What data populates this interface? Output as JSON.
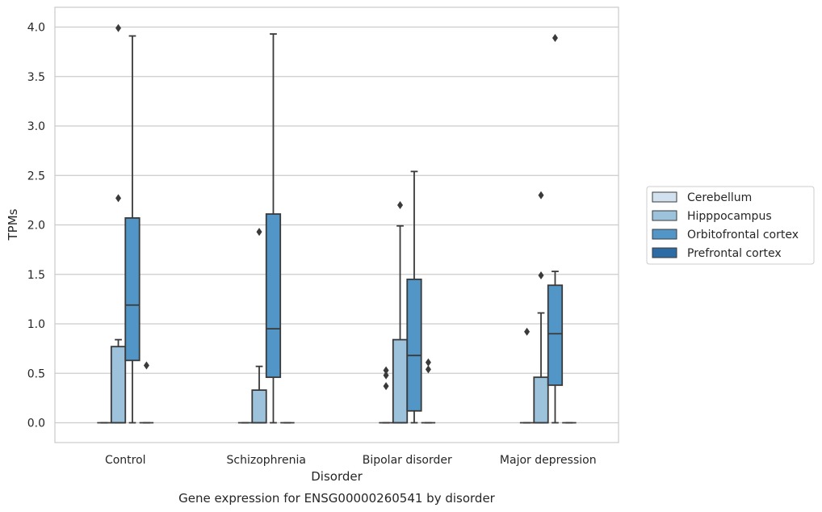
{
  "caption": "Gene expression for ENSG00000260541 by disorder",
  "chart_data": {
    "type": "boxplot",
    "title": "",
    "xlabel": "Disorder",
    "ylabel": "TPMs",
    "ylim": [
      -0.2,
      4.2
    ],
    "yticks": [
      "0.0",
      "0.5",
      "1.0",
      "1.5",
      "2.0",
      "2.5",
      "3.0",
      "3.5",
      "4.0"
    ],
    "grid": true,
    "legend_position": "right",
    "categories": [
      "Control",
      "Schizophrenia",
      "Bipolar disorder",
      "Major depression"
    ],
    "series": [
      {
        "name": "Cerebellum",
        "color": "#d1e1f0",
        "boxes": [
          {
            "min": 0,
            "q1": 0,
            "median": 0,
            "q3": 0,
            "max": 0,
            "outliers": []
          },
          {
            "min": 0,
            "q1": 0,
            "median": 0,
            "q3": 0,
            "max": 0,
            "outliers": []
          },
          {
            "min": 0,
            "q1": 0,
            "median": 0,
            "q3": 0,
            "max": 0,
            "outliers": [
              0.37,
              0.48,
              0.53
            ]
          },
          {
            "min": 0,
            "q1": 0,
            "median": 0,
            "q3": 0,
            "max": 0,
            "outliers": [
              0.92
            ]
          }
        ]
      },
      {
        "name": "Hipppocampus",
        "color": "#9cc2dc",
        "boxes": [
          {
            "min": 0,
            "q1": 0,
            "median": 0,
            "q3": 0.77,
            "max": 0.84,
            "outliers": [
              2.27,
              3.99
            ]
          },
          {
            "min": 0,
            "q1": 0,
            "median": 0,
            "q3": 0.33,
            "max": 0.57,
            "outliers": [
              1.93
            ]
          },
          {
            "min": 0,
            "q1": 0,
            "median": 0,
            "q3": 0.84,
            "max": 1.99,
            "outliers": [
              2.2
            ]
          },
          {
            "min": 0,
            "q1": 0,
            "median": 0,
            "q3": 0.46,
            "max": 1.11,
            "outliers": [
              1.49,
              2.3
            ]
          }
        ]
      },
      {
        "name": "Orbitofrontal cortex",
        "color": "#5196c7",
        "boxes": [
          {
            "min": 0,
            "q1": 0.63,
            "median": 1.19,
            "q3": 2.07,
            "max": 3.91,
            "outliers": []
          },
          {
            "min": 0,
            "q1": 0.46,
            "median": 0.95,
            "q3": 2.11,
            "max": 3.93,
            "outliers": []
          },
          {
            "min": 0,
            "q1": 0.12,
            "median": 0.68,
            "q3": 1.45,
            "max": 2.54,
            "outliers": []
          },
          {
            "min": 0,
            "q1": 0.38,
            "median": 0.9,
            "q3": 1.39,
            "max": 1.53,
            "outliers": [
              3.89
            ]
          }
        ]
      },
      {
        "name": "Prefrontal cortex",
        "color": "#2c6ba4",
        "boxes": [
          {
            "min": 0,
            "q1": 0,
            "median": 0,
            "q3": 0,
            "max": 0,
            "outliers": [
              0.58
            ]
          },
          {
            "min": 0,
            "q1": 0,
            "median": 0,
            "q3": 0,
            "max": 0,
            "outliers": []
          },
          {
            "min": 0,
            "q1": 0,
            "median": 0,
            "q3": 0,
            "max": 0,
            "outliers": [
              0.54,
              0.61
            ]
          },
          {
            "min": 0,
            "q1": 0,
            "median": 0,
            "q3": 0,
            "max": 0,
            "outliers": []
          }
        ]
      }
    ]
  }
}
